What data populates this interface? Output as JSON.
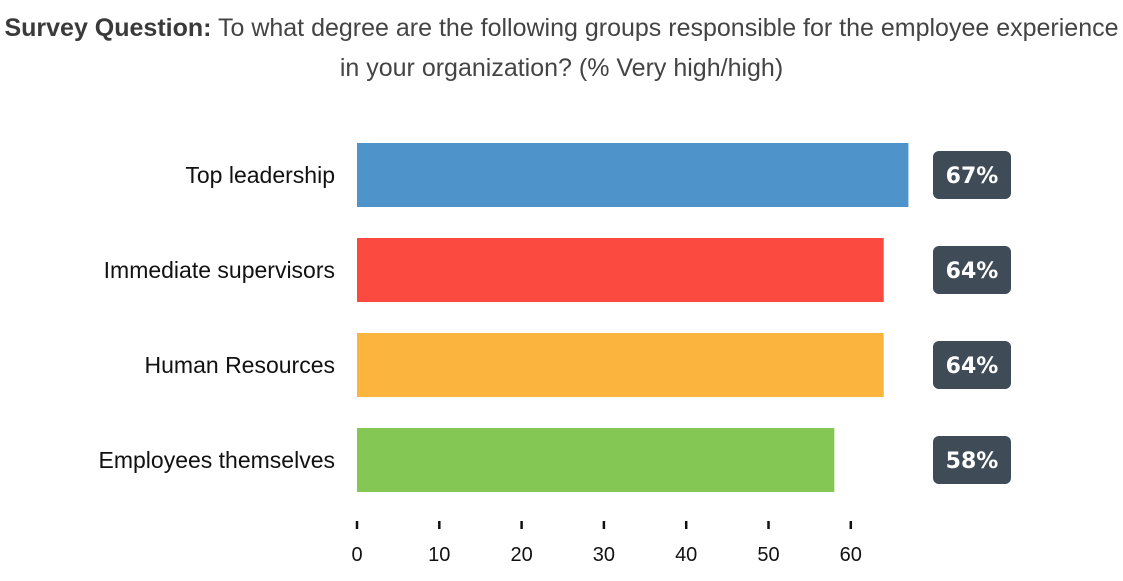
{
  "title": {
    "lead": "Survey Question:",
    "text": "To what degree are the following groups responsible for the employee experience in your organization? (% Very high/high)"
  },
  "chart_data": {
    "type": "bar",
    "orientation": "horizontal",
    "categories": [
      "Top leadership",
      "Immediate supervisors",
      "Human Resources",
      "Employees themselves"
    ],
    "values": [
      67,
      64,
      64,
      58
    ],
    "value_labels": [
      "67%",
      "64%",
      "64%",
      "58%"
    ],
    "bar_colors": [
      "#4f93cb",
      "#fb4a3f",
      "#fbb43e",
      "#85c755"
    ],
    "badge_color": "#3f4b57",
    "x_ticks": [
      0,
      10,
      20,
      30,
      40,
      50,
      60
    ],
    "xlim": [
      0,
      67
    ],
    "grid": false,
    "legend": "none"
  }
}
